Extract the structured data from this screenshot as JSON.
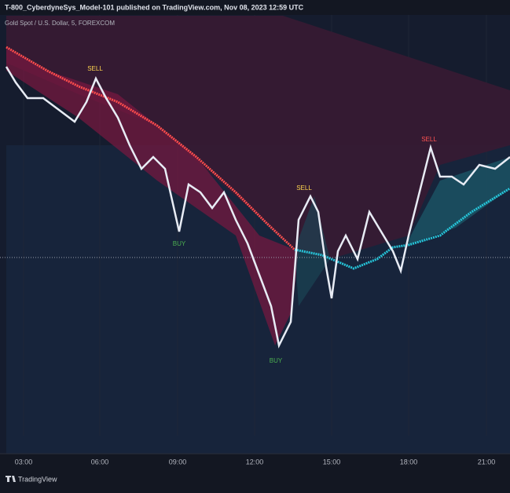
{
  "header": {
    "title": "T-800_CyberdyneSys_Model-101 published on TradingView.com, Nov 08, 2023 12:59 UTC"
  },
  "chart": {
    "legend": "Gold Spot / U.S. Dollar, 5, FOREXCOM",
    "signals": [
      "SELL",
      "SELL",
      "SELL",
      "BUY",
      "BUY"
    ],
    "time_labels": [
      "03:00",
      "06:00",
      "09:00",
      "12:00",
      "15:00",
      "18:00",
      "21:00"
    ]
  },
  "footer": {
    "brand": "TradingView"
  }
}
